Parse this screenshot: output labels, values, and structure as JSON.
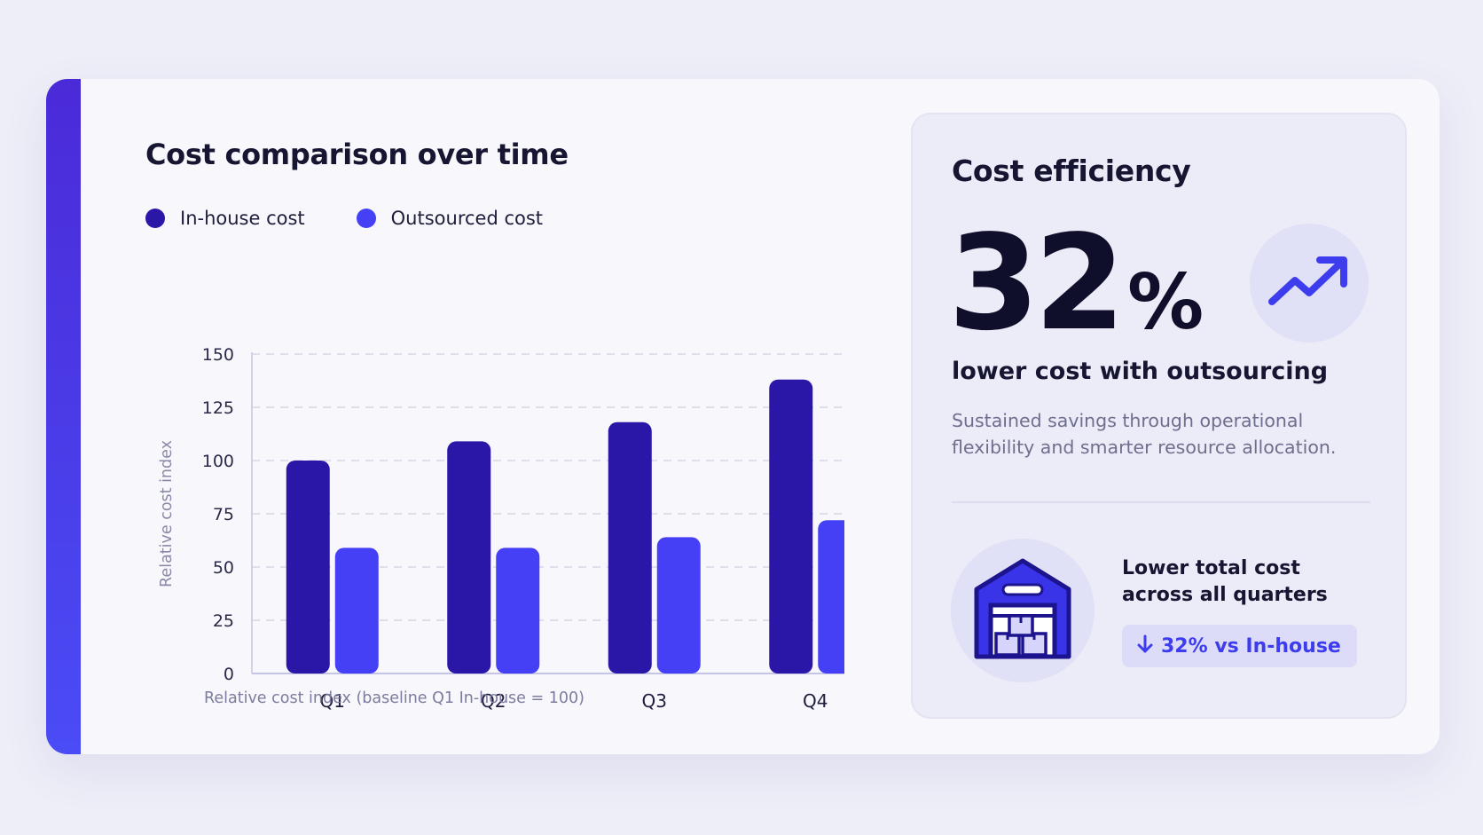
{
  "chart": {
    "title": "Cost comparison over time",
    "footnote": "Relative cost index (baseline Q1 In-house = 100)"
  },
  "chart_data": {
    "type": "bar",
    "title": "Cost comparison over time",
    "categories": [
      "Q1",
      "Q2",
      "Q3",
      "Q4"
    ],
    "series": [
      {
        "name": "In-house cost",
        "values": [
          100,
          109,
          118,
          138
        ],
        "color": "#2a17a8"
      },
      {
        "name": "Outsourced cost",
        "values": [
          59,
          59,
          64,
          72
        ],
        "color": "#4540f5"
      }
    ],
    "xlabel": "",
    "ylabel": "Relative cost index",
    "ylim": [
      0,
      150
    ],
    "yticks": [
      0,
      25,
      50,
      75,
      100,
      125,
      150
    ],
    "grid": true,
    "legend": "top-left"
  },
  "panel": {
    "title": "Cost efficiency",
    "stat_number": "32",
    "stat_unit": "%",
    "subhead": "lower cost with outsourcing",
    "description": "Sustained savings through operational flexibility and smarter resource allocation.",
    "note_title": "Lower total cost across all quarters",
    "badge_text": "32% vs In-house",
    "icons": [
      "trend-up-icon",
      "warehouse-icon",
      "arrow-down-icon"
    ]
  },
  "colors": {
    "accent": "#4a3ff0",
    "inhouse": "#2a17a8",
    "outsourced": "#4540f5",
    "text_dark": "#161632",
    "text_muted": "#6e6e8e"
  }
}
